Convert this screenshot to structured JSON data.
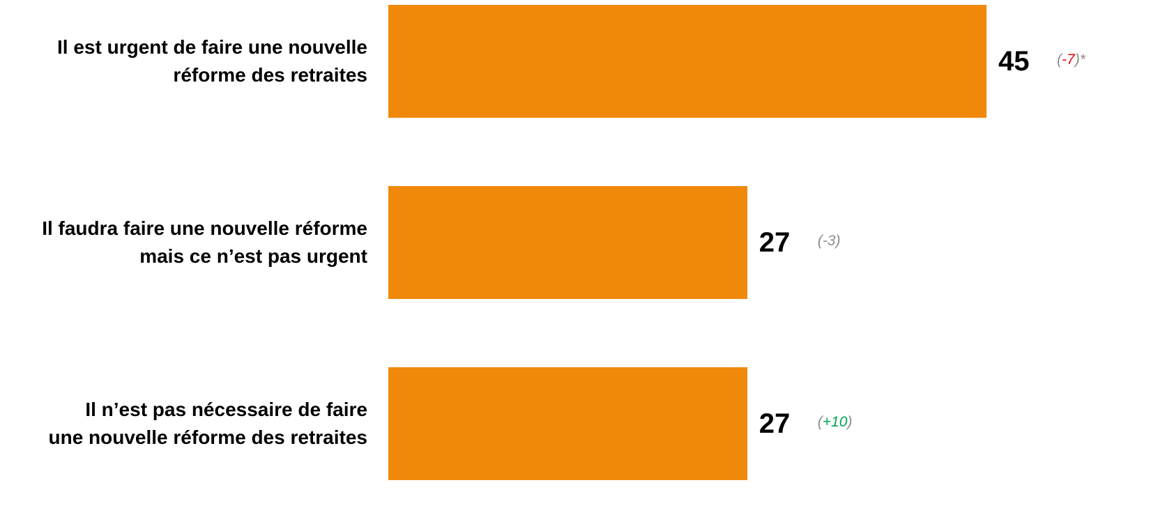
{
  "chart_data": {
    "type": "bar",
    "orientation": "horizontal",
    "categories": [
      "Il est urgent de faire une nouvelle\nréforme des retraites",
      "Il faudra faire une nouvelle réforme\nmais ce n’est pas urgent",
      "Il n’est pas nécessaire de faire\nune nouvelle réforme des retraites"
    ],
    "values": [
      45,
      27,
      27
    ],
    "changes": [
      {
        "open": "(",
        "num": "-7",
        "close": ")*",
        "color": "#e30613"
      },
      {
        "open": "(",
        "num": "-3",
        "close": ")",
        "color": "#8c8c8c"
      },
      {
        "open": "(",
        "num": "+10",
        "close": ")",
        "color": "#00a650"
      }
    ],
    "value_labels": [
      "45",
      "27",
      "27"
    ],
    "bar_color": "#f0880a",
    "xlim": [
      0,
      45
    ],
    "grid": false,
    "legend": "none",
    "title": "",
    "xlabel": "",
    "ylabel": ""
  }
}
